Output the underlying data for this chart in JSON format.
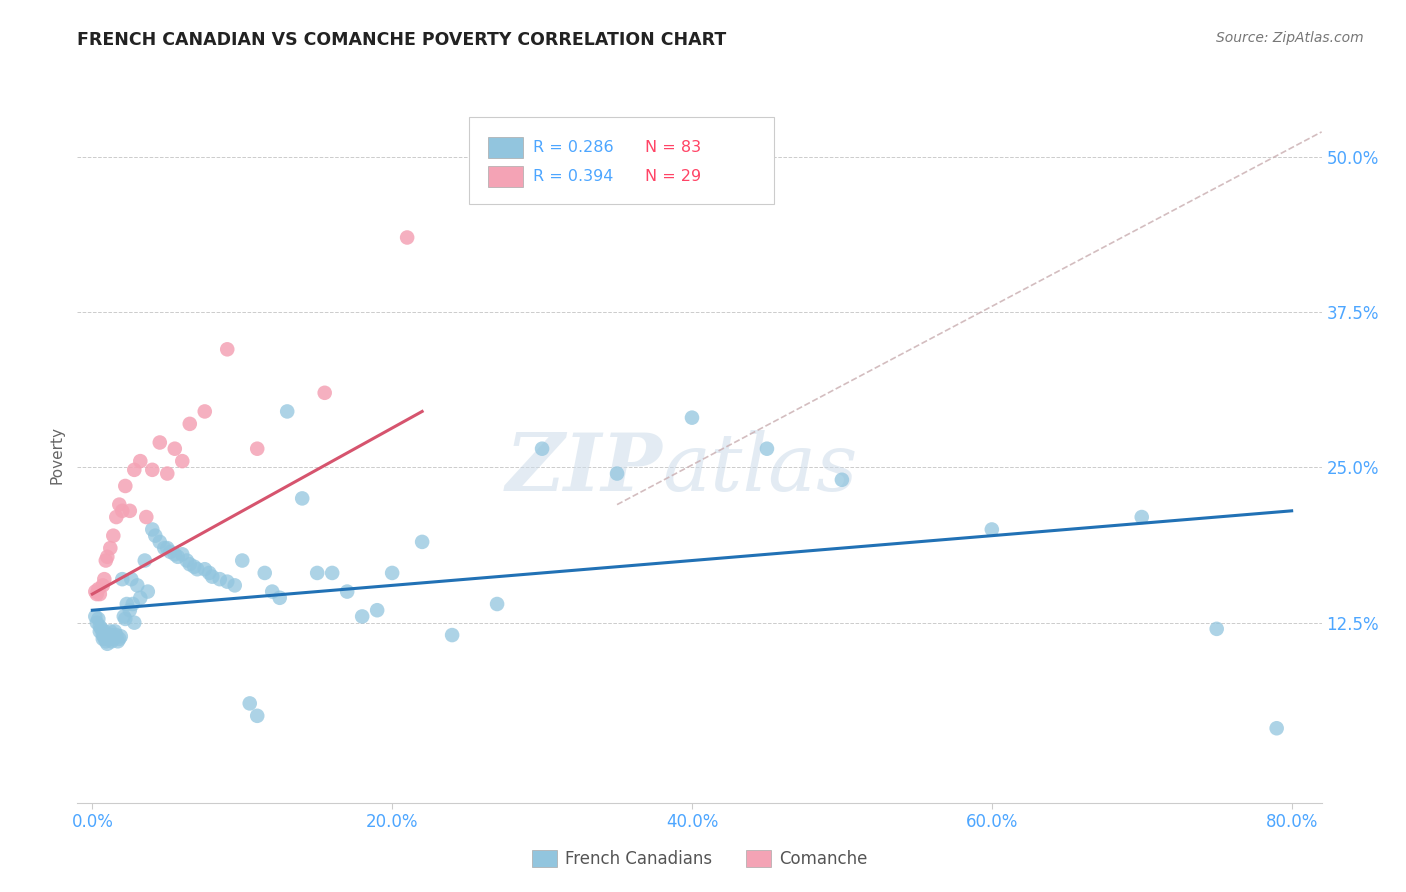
{
  "title": "FRENCH CANADIAN VS COMANCHE POVERTY CORRELATION CHART",
  "source": "Source: ZipAtlas.com",
  "ylabel": "Poverty",
  "xlabel_ticks": [
    "0.0%",
    "20.0%",
    "40.0%",
    "60.0%",
    "80.0%"
  ],
  "xlabel_vals": [
    0.0,
    0.2,
    0.4,
    0.6,
    0.8
  ],
  "ylabel_ticks": [
    "12.5%",
    "25.0%",
    "37.5%",
    "50.0%"
  ],
  "ylabel_vals": [
    0.125,
    0.25,
    0.375,
    0.5
  ],
  "xlim": [
    -0.01,
    0.82
  ],
  "ylim": [
    -0.02,
    0.54
  ],
  "french_R": 0.286,
  "french_N": 83,
  "comanche_R": 0.394,
  "comanche_N": 29,
  "blue_color": "#92c5de",
  "pink_color": "#f4a3b5",
  "blue_line_color": "#2171b5",
  "pink_line_color": "#d6546e",
  "dashed_line_color": "#c9adb0",
  "watermark_zip": "ZIP",
  "watermark_atlas": "atlas",
  "french_x": [
    0.002,
    0.003,
    0.004,
    0.005,
    0.005,
    0.006,
    0.007,
    0.007,
    0.008,
    0.008,
    0.009,
    0.009,
    0.01,
    0.01,
    0.011,
    0.011,
    0.012,
    0.013,
    0.013,
    0.014,
    0.015,
    0.015,
    0.016,
    0.017,
    0.018,
    0.019,
    0.02,
    0.021,
    0.022,
    0.023,
    0.025,
    0.026,
    0.027,
    0.028,
    0.03,
    0.032,
    0.035,
    0.037,
    0.04,
    0.042,
    0.045,
    0.048,
    0.05,
    0.052,
    0.055,
    0.057,
    0.06,
    0.063,
    0.065,
    0.068,
    0.07,
    0.075,
    0.078,
    0.08,
    0.085,
    0.09,
    0.095,
    0.1,
    0.105,
    0.11,
    0.115,
    0.12,
    0.125,
    0.13,
    0.14,
    0.15,
    0.16,
    0.17,
    0.18,
    0.19,
    0.2,
    0.22,
    0.24,
    0.27,
    0.3,
    0.35,
    0.4,
    0.45,
    0.5,
    0.6,
    0.7,
    0.75,
    0.79
  ],
  "french_y": [
    0.13,
    0.125,
    0.128,
    0.122,
    0.118,
    0.12,
    0.115,
    0.112,
    0.118,
    0.113,
    0.115,
    0.11,
    0.112,
    0.108,
    0.115,
    0.112,
    0.118,
    0.11,
    0.115,
    0.112,
    0.118,
    0.113,
    0.115,
    0.11,
    0.112,
    0.114,
    0.16,
    0.13,
    0.128,
    0.14,
    0.135,
    0.16,
    0.14,
    0.125,
    0.155,
    0.145,
    0.175,
    0.15,
    0.2,
    0.195,
    0.19,
    0.185,
    0.185,
    0.182,
    0.18,
    0.178,
    0.18,
    0.175,
    0.172,
    0.17,
    0.168,
    0.168,
    0.165,
    0.162,
    0.16,
    0.158,
    0.155,
    0.175,
    0.06,
    0.05,
    0.165,
    0.15,
    0.145,
    0.295,
    0.225,
    0.165,
    0.165,
    0.15,
    0.13,
    0.135,
    0.165,
    0.19,
    0.115,
    0.14,
    0.265,
    0.245,
    0.29,
    0.265,
    0.24,
    0.2,
    0.21,
    0.12,
    0.04
  ],
  "comanche_x": [
    0.002,
    0.003,
    0.004,
    0.005,
    0.007,
    0.008,
    0.009,
    0.01,
    0.012,
    0.014,
    0.016,
    0.018,
    0.02,
    0.022,
    0.025,
    0.028,
    0.032,
    0.036,
    0.04,
    0.045,
    0.05,
    0.055,
    0.06,
    0.065,
    0.075,
    0.09,
    0.11,
    0.155,
    0.21
  ],
  "comanche_y": [
    0.15,
    0.148,
    0.152,
    0.148,
    0.155,
    0.16,
    0.175,
    0.178,
    0.185,
    0.195,
    0.21,
    0.22,
    0.215,
    0.235,
    0.215,
    0.248,
    0.255,
    0.21,
    0.248,
    0.27,
    0.245,
    0.265,
    0.255,
    0.285,
    0.295,
    0.345,
    0.265,
    0.31,
    0.435
  ],
  "french_trendline_x": [
    0.0,
    0.8
  ],
  "french_trendline_y": [
    0.135,
    0.215
  ],
  "comanche_trendline_x": [
    0.0,
    0.22
  ],
  "comanche_trendline_y": [
    0.148,
    0.295
  ],
  "dashed_line_x": [
    0.35,
    0.82
  ],
  "dashed_line_y": [
    0.22,
    0.52
  ]
}
